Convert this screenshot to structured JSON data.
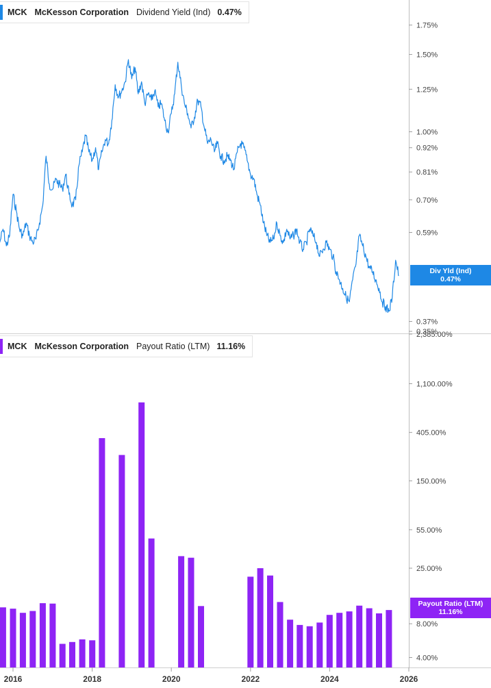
{
  "colors": {
    "yield_line": "#1e88e5",
    "payout_bar": "#8e24f5",
    "grid": "#d9d9d9",
    "axis_text": "#444444"
  },
  "top_legend": {
    "ticker": "MCK",
    "company": "McKesson Corporation",
    "metric": "Dividend Yield (Ind)",
    "value": "0.47%"
  },
  "bottom_legend": {
    "ticker": "MCK",
    "company": "McKesson Corporation",
    "metric": "Payout Ratio (LTM)",
    "value": "11.16%"
  },
  "top_tag": {
    "label": "Div Yld (Ind)",
    "value": "0.47%"
  },
  "bottom_tag": {
    "label": "Payout Ratio (LTM)",
    "value": "11.16%"
  },
  "chart_data": [
    {
      "type": "line",
      "title": "",
      "series": [
        {
          "name": "Dividend Yield (Ind)"
        }
      ],
      "y_scale": "log",
      "y_ticks": [
        "1.75%",
        "1.50%",
        "1.25%",
        "1.00%",
        "0.92%",
        "0.81%",
        "0.70%",
        "0.59%",
        "0.37%",
        "0.35%"
      ],
      "x_ticks": [
        "2016",
        "2018",
        "2020",
        "2022",
        "2024",
        "2026"
      ],
      "points": [
        [
          "2015-09-01",
          0.56
        ],
        [
          "2015-10-01",
          0.6
        ],
        [
          "2015-11-01",
          0.55
        ],
        [
          "2015-12-01",
          0.58
        ],
        [
          "2016-01-01",
          0.72
        ],
        [
          "2016-02-01",
          0.66
        ],
        [
          "2016-03-01",
          0.6
        ],
        [
          "2016-04-01",
          0.58
        ],
        [
          "2016-05-01",
          0.62
        ],
        [
          "2016-06-01",
          0.58
        ],
        [
          "2016-07-01",
          0.56
        ],
        [
          "2016-08-01",
          0.57
        ],
        [
          "2016-09-01",
          0.62
        ],
        [
          "2016-10-01",
          0.68
        ],
        [
          "2016-11-01",
          0.88
        ],
        [
          "2016-12-01",
          0.76
        ],
        [
          "2017-01-01",
          0.74
        ],
        [
          "2017-02-01",
          0.78
        ],
        [
          "2017-03-01",
          0.76
        ],
        [
          "2017-04-01",
          0.74
        ],
        [
          "2017-05-01",
          0.8
        ],
        [
          "2017-06-01",
          0.72
        ],
        [
          "2017-07-01",
          0.68
        ],
        [
          "2017-08-01",
          0.7
        ],
        [
          "2017-09-01",
          0.84
        ],
        [
          "2017-10-01",
          0.9
        ],
        [
          "2017-11-01",
          0.98
        ],
        [
          "2017-12-01",
          0.9
        ],
        [
          "2018-01-01",
          0.86
        ],
        [
          "2018-02-01",
          0.92
        ],
        [
          "2018-03-01",
          0.82
        ],
        [
          "2018-04-01",
          0.9
        ],
        [
          "2018-05-01",
          0.96
        ],
        [
          "2018-06-01",
          0.94
        ],
        [
          "2018-07-01",
          1.06
        ],
        [
          "2018-08-01",
          1.28
        ],
        [
          "2018-09-01",
          1.2
        ],
        [
          "2018-10-01",
          1.24
        ],
        [
          "2018-11-01",
          1.3
        ],
        [
          "2018-12-01",
          1.46
        ],
        [
          "2019-01-01",
          1.32
        ],
        [
          "2019-02-01",
          1.4
        ],
        [
          "2019-03-01",
          1.22
        ],
        [
          "2019-04-01",
          1.3
        ],
        [
          "2019-05-01",
          1.16
        ],
        [
          "2019-06-01",
          1.22
        ],
        [
          "2019-07-01",
          1.18
        ],
        [
          "2019-08-01",
          1.24
        ],
        [
          "2019-09-01",
          1.14
        ],
        [
          "2019-10-01",
          1.16
        ],
        [
          "2019-11-01",
          1.06
        ],
        [
          "2019-12-01",
          1.0
        ],
        [
          "2020-01-01",
          1.1
        ],
        [
          "2020-02-01",
          1.22
        ],
        [
          "2020-03-01",
          1.44
        ],
        [
          "2020-04-01",
          1.28
        ],
        [
          "2020-05-01",
          1.16
        ],
        [
          "2020-06-01",
          1.1
        ],
        [
          "2020-07-01",
          1.02
        ],
        [
          "2020-08-01",
          1.08
        ],
        [
          "2020-09-01",
          1.18
        ],
        [
          "2020-10-01",
          1.14
        ],
        [
          "2020-11-01",
          1.02
        ],
        [
          "2020-12-01",
          0.94
        ],
        [
          "2021-01-01",
          0.96
        ],
        [
          "2021-02-01",
          0.9
        ],
        [
          "2021-03-01",
          0.94
        ],
        [
          "2021-04-01",
          0.88
        ],
        [
          "2021-05-01",
          0.86
        ],
        [
          "2021-06-01",
          0.88
        ],
        [
          "2021-07-01",
          0.86
        ],
        [
          "2021-08-01",
          0.82
        ],
        [
          "2021-09-01",
          0.9
        ],
        [
          "2021-10-01",
          0.94
        ],
        [
          "2021-11-01",
          0.92
        ],
        [
          "2021-12-01",
          0.86
        ],
        [
          "2022-01-01",
          0.8
        ],
        [
          "2022-02-01",
          0.78
        ],
        [
          "2022-03-01",
          0.72
        ],
        [
          "2022-04-01",
          0.68
        ],
        [
          "2022-05-01",
          0.62
        ],
        [
          "2022-06-01",
          0.58
        ],
        [
          "2022-07-01",
          0.56
        ],
        [
          "2022-08-01",
          0.57
        ],
        [
          "2022-09-01",
          0.62
        ],
        [
          "2022-10-01",
          0.58
        ],
        [
          "2022-11-01",
          0.56
        ],
        [
          "2022-12-01",
          0.6
        ],
        [
          "2023-01-01",
          0.57
        ],
        [
          "2023-02-01",
          0.58
        ],
        [
          "2023-03-01",
          0.6
        ],
        [
          "2023-04-01",
          0.56
        ],
        [
          "2023-05-01",
          0.54
        ],
        [
          "2023-06-01",
          0.56
        ],
        [
          "2023-07-01",
          0.6
        ],
        [
          "2023-08-01",
          0.58
        ],
        [
          "2023-09-01",
          0.56
        ],
        [
          "2023-10-01",
          0.52
        ],
        [
          "2023-11-01",
          0.54
        ],
        [
          "2023-12-01",
          0.56
        ],
        [
          "2024-01-01",
          0.54
        ],
        [
          "2024-02-01",
          0.52
        ],
        [
          "2024-03-01",
          0.48
        ],
        [
          "2024-04-01",
          0.46
        ],
        [
          "2024-05-01",
          0.44
        ],
        [
          "2024-06-01",
          0.42
        ],
        [
          "2024-07-01",
          0.41
        ],
        [
          "2024-08-01",
          0.46
        ],
        [
          "2024-09-01",
          0.5
        ],
        [
          "2024-10-01",
          0.58
        ],
        [
          "2024-11-01",
          0.55
        ],
        [
          "2024-12-01",
          0.52
        ],
        [
          "2025-01-01",
          0.49
        ],
        [
          "2025-02-01",
          0.48
        ],
        [
          "2025-03-01",
          0.46
        ],
        [
          "2025-04-01",
          0.44
        ],
        [
          "2025-05-01",
          0.41
        ],
        [
          "2025-06-01",
          0.4
        ],
        [
          "2025-07-01",
          0.39
        ],
        [
          "2025-08-01",
          0.42
        ],
        [
          "2025-09-01",
          0.51
        ],
        [
          "2025-10-01",
          0.47
        ]
      ]
    },
    {
      "type": "bar",
      "title": "",
      "series": [
        {
          "name": "Payout Ratio (LTM)"
        }
      ],
      "y_scale": "log",
      "y_ticks": [
        "2,385.00%",
        "1,100.00%",
        "405.00%",
        "150.00%",
        "55.00%",
        "25.00%",
        "8.00%",
        "4.00%"
      ],
      "x_ticks": [
        "2016",
        "2018",
        "2020",
        "2022",
        "2024",
        "2026"
      ],
      "bars": [
        [
          "2015-10-01",
          11.2
        ],
        [
          "2016-01-01",
          10.9
        ],
        [
          "2016-04-01",
          10.0
        ],
        [
          "2016-07-01",
          10.4
        ],
        [
          "2016-10-01",
          12.2
        ],
        [
          "2017-01-01",
          12.1
        ],
        [
          "2017-04-01",
          5.3
        ],
        [
          "2017-07-01",
          5.5
        ],
        [
          "2017-10-01",
          5.8
        ],
        [
          "2018-01-01",
          5.7
        ],
        [
          "2018-04-01",
          360
        ],
        [
          "2018-10-01",
          255
        ],
        [
          "2019-04-01",
          750
        ],
        [
          "2019-07-01",
          46
        ],
        [
          "2020-04-01",
          32
        ],
        [
          "2020-07-01",
          31
        ],
        [
          "2020-10-01",
          11.5
        ],
        [
          "2022-01-01",
          21
        ],
        [
          "2022-04-01",
          25
        ],
        [
          "2022-07-01",
          21.5
        ],
        [
          "2022-10-01",
          12.5
        ],
        [
          "2023-01-01",
          8.7
        ],
        [
          "2023-04-01",
          7.8
        ],
        [
          "2023-07-01",
          7.6
        ],
        [
          "2023-10-01",
          8.2
        ],
        [
          "2024-01-01",
          9.6
        ],
        [
          "2024-04-01",
          10.0
        ],
        [
          "2024-07-01",
          10.3
        ],
        [
          "2024-10-01",
          11.6
        ],
        [
          "2025-01-01",
          11.0
        ],
        [
          "2025-04-01",
          9.9
        ],
        [
          "2025-07-01",
          10.6
        ]
      ]
    }
  ]
}
